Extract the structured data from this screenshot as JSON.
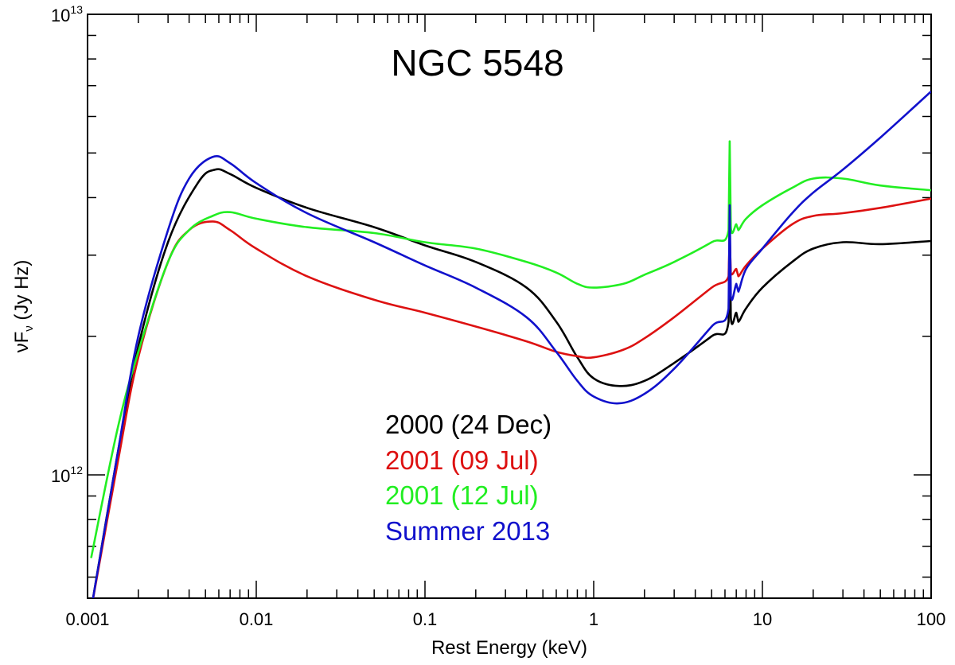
{
  "chart_data": {
    "type": "line",
    "title": "NGC 5548",
    "xlabel": "Rest Energy (keV)",
    "ylabel": "νFν (Jy Hz)",
    "ylabel_main": "νF",
    "ylabel_sub": "ν",
    "ylabel_unit": "(Jy Hz)",
    "xscale": "log",
    "yscale": "log",
    "xlim": [
      0.001,
      100
    ],
    "ylim": [
      540000000000.0,
      10000000000000.0
    ],
    "grid": false,
    "legend_position": "center-bottom",
    "x_tick_labels": [
      "0.001",
      "0.01",
      "0.1",
      "1",
      "10",
      "100"
    ],
    "y_tick_labels": [
      {
        "base": "10",
        "exp": "12"
      },
      {
        "base": "10",
        "exp": "13"
      }
    ],
    "series": [
      {
        "name": "2000 (24 Dec)",
        "color": "#000000",
        "points": [
          [
            0.00105,
            510000000000.0
          ],
          [
            0.0015,
            1100000000000.0
          ],
          [
            0.002,
            1900000000000.0
          ],
          [
            0.003,
            3200000000000.0
          ],
          [
            0.0045,
            4300000000000.0
          ],
          [
            0.0057,
            4600000000000.0
          ],
          [
            0.007,
            4500000000000.0
          ],
          [
            0.01,
            4200000000000.0
          ],
          [
            0.02,
            3800000000000.0
          ],
          [
            0.05,
            3450000000000.0
          ],
          [
            0.1,
            3150000000000.0
          ],
          [
            0.2,
            2900000000000.0
          ],
          [
            0.4,
            2550000000000.0
          ],
          [
            0.6,
            2150000000000.0
          ],
          [
            0.8,
            1800000000000.0
          ],
          [
            1.0,
            1620000000000.0
          ],
          [
            1.4,
            1560000000000.0
          ],
          [
            2.0,
            1600000000000.0
          ],
          [
            3.0,
            1750000000000.0
          ],
          [
            5.0,
            2000000000000.0
          ],
          [
            6.3,
            2150000000000.0
          ],
          [
            6.4,
            3700000000000.0
          ],
          [
            6.5,
            2200000000000.0
          ],
          [
            7.0,
            2250000000000.0
          ],
          [
            7.2,
            2150000000000.0
          ],
          [
            8.0,
            2300000000000.0
          ],
          [
            10,
            2550000000000.0
          ],
          [
            15,
            2900000000000.0
          ],
          [
            20,
            3100000000000.0
          ],
          [
            30,
            3200000000000.0
          ],
          [
            50,
            3170000000000.0
          ],
          [
            100,
            3220000000000.0
          ]
        ]
      },
      {
        "name": "2001 (09 Jul)",
        "color": "#dd1111",
        "points": [
          [
            0.00105,
            510000000000.0
          ],
          [
            0.0015,
            1050000000000.0
          ],
          [
            0.002,
            1800000000000.0
          ],
          [
            0.003,
            2900000000000.0
          ],
          [
            0.004,
            3400000000000.0
          ],
          [
            0.0055,
            3550000000000.0
          ],
          [
            0.007,
            3400000000000.0
          ],
          [
            0.01,
            3100000000000.0
          ],
          [
            0.02,
            2700000000000.0
          ],
          [
            0.05,
            2400000000000.0
          ],
          [
            0.1,
            2250000000000.0
          ],
          [
            0.2,
            2100000000000.0
          ],
          [
            0.4,
            1950000000000.0
          ],
          [
            0.6,
            1850000000000.0
          ],
          [
            0.8,
            1810000000000.0
          ],
          [
            1.0,
            1800000000000.0
          ],
          [
            1.5,
            1870000000000.0
          ],
          [
            2.0,
            1980000000000.0
          ],
          [
            3.0,
            2200000000000.0
          ],
          [
            5.0,
            2550000000000.0
          ],
          [
            6.3,
            2700000000000.0
          ],
          [
            6.4,
            3300000000000.0
          ],
          [
            6.5,
            2750000000000.0
          ],
          [
            7.0,
            2800000000000.0
          ],
          [
            7.2,
            2700000000000.0
          ],
          [
            8.0,
            2850000000000.0
          ],
          [
            10,
            3100000000000.0
          ],
          [
            15,
            3500000000000.0
          ],
          [
            20,
            3650000000000.0
          ],
          [
            30,
            3700000000000.0
          ],
          [
            50,
            3800000000000.0
          ],
          [
            100,
            3980000000000.0
          ]
        ]
      },
      {
        "name": "2001 (12 Jul)",
        "color": "#22ee22",
        "points": [
          [
            0.00105,
            660000000000.0
          ],
          [
            0.0015,
            1250000000000.0
          ],
          [
            0.002,
            1850000000000.0
          ],
          [
            0.003,
            2900000000000.0
          ],
          [
            0.004,
            3400000000000.0
          ],
          [
            0.0055,
            3650000000000.0
          ],
          [
            0.007,
            3720000000000.0
          ],
          [
            0.01,
            3600000000000.0
          ],
          [
            0.02,
            3450000000000.0
          ],
          [
            0.05,
            3350000000000.0
          ],
          [
            0.1,
            3200000000000.0
          ],
          [
            0.2,
            3100000000000.0
          ],
          [
            0.4,
            2900000000000.0
          ],
          [
            0.6,
            2750000000000.0
          ],
          [
            0.8,
            2600000000000.0
          ],
          [
            1.0,
            2550000000000.0
          ],
          [
            1.5,
            2600000000000.0
          ],
          [
            2.0,
            2720000000000.0
          ],
          [
            3.0,
            2900000000000.0
          ],
          [
            5.0,
            3200000000000.0
          ],
          [
            6.3,
            3400000000000.0
          ],
          [
            6.4,
            5300000000000.0
          ],
          [
            6.5,
            3450000000000.0
          ],
          [
            7.0,
            3500000000000.0
          ],
          [
            7.2,
            3400000000000.0
          ],
          [
            8.0,
            3600000000000.0
          ],
          [
            10,
            3850000000000.0
          ],
          [
            15,
            4200000000000.0
          ],
          [
            20,
            4400000000000.0
          ],
          [
            30,
            4400000000000.0
          ],
          [
            50,
            4250000000000.0
          ],
          [
            100,
            4150000000000.0
          ]
        ]
      },
      {
        "name": "Summer 2013",
        "color": "#1111cc",
        "points": [
          [
            0.00105,
            510000000000.0
          ],
          [
            0.0015,
            1100000000000.0
          ],
          [
            0.002,
            2000000000000.0
          ],
          [
            0.003,
            3400000000000.0
          ],
          [
            0.004,
            4400000000000.0
          ],
          [
            0.0055,
            4900000000000.0
          ],
          [
            0.007,
            4750000000000.0
          ],
          [
            0.01,
            4300000000000.0
          ],
          [
            0.02,
            3700000000000.0
          ],
          [
            0.05,
            3200000000000.0
          ],
          [
            0.1,
            2850000000000.0
          ],
          [
            0.2,
            2550000000000.0
          ],
          [
            0.4,
            2200000000000.0
          ],
          [
            0.6,
            1850000000000.0
          ],
          [
            0.8,
            1600000000000.0
          ],
          [
            1.0,
            1480000000000.0
          ],
          [
            1.4,
            1430000000000.0
          ],
          [
            2.0,
            1500000000000.0
          ],
          [
            3.0,
            1700000000000.0
          ],
          [
            5.0,
            2100000000000.0
          ],
          [
            6.3,
            2300000000000.0
          ],
          [
            6.4,
            3850000000000.0
          ],
          [
            6.5,
            2450000000000.0
          ],
          [
            7.0,
            2600000000000.0
          ],
          [
            7.2,
            2500000000000.0
          ],
          [
            8.0,
            2800000000000.0
          ],
          [
            10,
            3100000000000.0
          ],
          [
            15,
            3700000000000.0
          ],
          [
            20,
            4100000000000.0
          ],
          [
            30,
            4600000000000.0
          ],
          [
            50,
            5400000000000.0
          ],
          [
            100,
            6800000000000.0
          ]
        ]
      }
    ]
  }
}
